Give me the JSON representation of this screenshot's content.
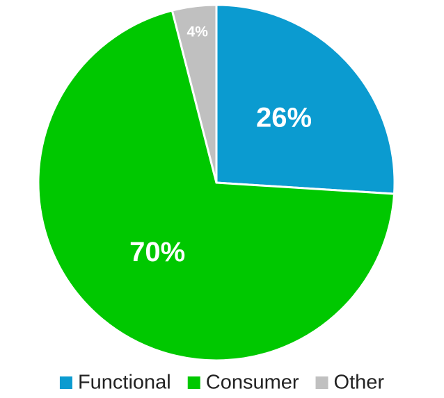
{
  "chart_data": {
    "type": "pie",
    "categories": [
      "Functional",
      "Consumer",
      "Other"
    ],
    "values": [
      26,
      70,
      4
    ],
    "value_labels": [
      "26%",
      "70%",
      "4%"
    ],
    "colors": [
      "#0b9bd0",
      "#00c800",
      "#c0c0c0"
    ],
    "legend": "bottom"
  }
}
